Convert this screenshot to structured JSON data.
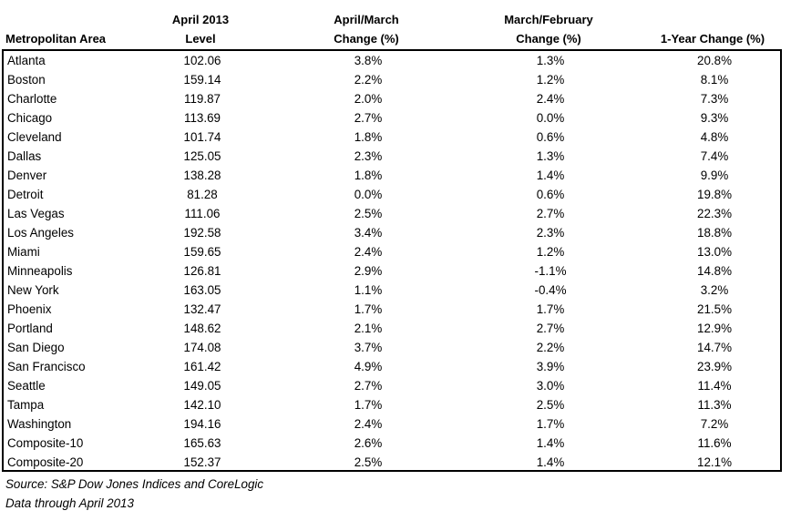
{
  "headers": {
    "area": "Metropolitan Area",
    "level_line1": "April 2013",
    "level_line2": "Level",
    "april_march_line1": "April/March",
    "april_march_line2": "Change (%)",
    "march_feb_line1": "March/February",
    "march_feb_line2": "Change (%)",
    "one_year": "1-Year Change (%)"
  },
  "rows": [
    {
      "area": "Atlanta",
      "level": "102.06",
      "april_march": "3.8%",
      "march_feb": "1.3%",
      "one_year": "20.8%"
    },
    {
      "area": "Boston",
      "level": "159.14",
      "april_march": "2.2%",
      "march_feb": "1.2%",
      "one_year": "8.1%"
    },
    {
      "area": "Charlotte",
      "level": "119.87",
      "april_march": "2.0%",
      "march_feb": "2.4%",
      "one_year": "7.3%"
    },
    {
      "area": "Chicago",
      "level": "113.69",
      "april_march": "2.7%",
      "march_feb": "0.0%",
      "one_year": "9.3%"
    },
    {
      "area": "Cleveland",
      "level": "101.74",
      "april_march": "1.8%",
      "march_feb": "0.6%",
      "one_year": "4.8%"
    },
    {
      "area": "Dallas",
      "level": "125.05",
      "april_march": "2.3%",
      "march_feb": "1.3%",
      "one_year": "7.4%"
    },
    {
      "area": "Denver",
      "level": "138.28",
      "april_march": "1.8%",
      "march_feb": "1.4%",
      "one_year": "9.9%"
    },
    {
      "area": "Detroit",
      "level": "81.28",
      "april_march": "0.0%",
      "march_feb": "0.6%",
      "one_year": "19.8%"
    },
    {
      "area": "Las Vegas",
      "level": "111.06",
      "april_march": "2.5%",
      "march_feb": "2.7%",
      "one_year": "22.3%"
    },
    {
      "area": "Los Angeles",
      "level": "192.58",
      "april_march": "3.4%",
      "march_feb": "2.3%",
      "one_year": "18.8%"
    },
    {
      "area": "Miami",
      "level": "159.65",
      "april_march": "2.4%",
      "march_feb": "1.2%",
      "one_year": "13.0%"
    },
    {
      "area": "Minneapolis",
      "level": "126.81",
      "april_march": "2.9%",
      "march_feb": "-1.1%",
      "one_year": "14.8%"
    },
    {
      "area": "New York",
      "level": "163.05",
      "april_march": "1.1%",
      "march_feb": "-0.4%",
      "one_year": "3.2%"
    },
    {
      "area": "Phoenix",
      "level": "132.47",
      "april_march": "1.7%",
      "march_feb": "1.7%",
      "one_year": "21.5%"
    },
    {
      "area": "Portland",
      "level": "148.62",
      "april_march": "2.1%",
      "march_feb": "2.7%",
      "one_year": "12.9%"
    },
    {
      "area": "San Diego",
      "level": "174.08",
      "april_march": "3.7%",
      "march_feb": "2.2%",
      "one_year": "14.7%"
    },
    {
      "area": "San Francisco",
      "level": "161.42",
      "april_march": "4.9%",
      "march_feb": "3.9%",
      "one_year": "23.9%"
    },
    {
      "area": "Seattle",
      "level": "149.05",
      "april_march": "2.7%",
      "march_feb": "3.0%",
      "one_year": "11.4%"
    },
    {
      "area": "Tampa",
      "level": "142.10",
      "april_march": "1.7%",
      "march_feb": "2.5%",
      "one_year": "11.3%"
    },
    {
      "area": "Washington",
      "level": "194.16",
      "april_march": "2.4%",
      "march_feb": "1.7%",
      "one_year": "7.2%"
    },
    {
      "area": "Composite-10",
      "level": "165.63",
      "april_march": "2.6%",
      "march_feb": "1.4%",
      "one_year": "11.6%"
    },
    {
      "area": "Composite-20",
      "level": "152.37",
      "april_march": "2.5%",
      "march_feb": "1.4%",
      "one_year": "12.1%"
    }
  ],
  "notes": {
    "source": "Source: S&P Dow Jones Indices and CoreLogic",
    "data_through": "Data through April 2013"
  }
}
